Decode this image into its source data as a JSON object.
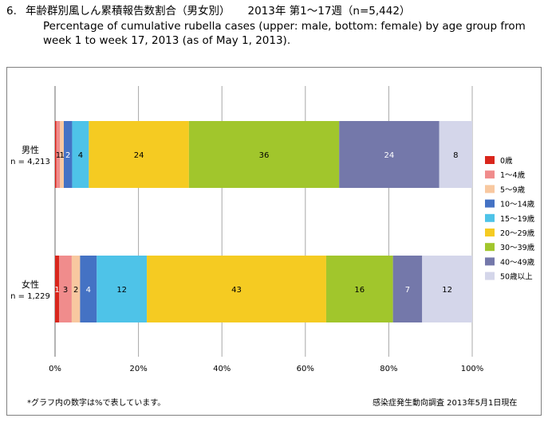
{
  "header": {
    "number": "6.",
    "title_ja": "年齢群別風しん累積報告数割合（男女別）",
    "range": "2013年 第1～17週（n=5,442）",
    "title_en_1": "Percentage of cumulative rubella cases (upper: male, bottom: female) by age group from",
    "title_en_2": "week 1 to week 17, 2013 (as of May 1, 2013)."
  },
  "footer": {
    "note": "*グラフ内の数字は%で表しています。",
    "source": "感染症発生動向調査 2013年5月1日現在"
  },
  "chart_data": {
    "type": "bar",
    "orientation": "horizontal",
    "stacked": true,
    "percent": true,
    "xlim": [
      0,
      100
    ],
    "xticks": [
      "0%",
      "20%",
      "40%",
      "60%",
      "80%",
      "100%"
    ],
    "categories": [
      {
        "label": "男性",
        "n": "n = 4,213"
      },
      {
        "label": "女性",
        "n": "n = 1,229"
      }
    ],
    "series": [
      {
        "name": "0歳",
        "color": "#d9261c",
        "values": [
          0.3,
          1.0
        ],
        "labels": [
          "",
          "1"
        ]
      },
      {
        "name": "1～4歳",
        "color": "#f08c8c",
        "values": [
          0.9,
          3.0
        ],
        "labels": [
          "1",
          "3"
        ]
      },
      {
        "name": "5～9歳",
        "color": "#f8c8a0",
        "values": [
          0.9,
          2.0
        ],
        "labels": [
          "1",
          "2"
        ]
      },
      {
        "name": "10～14歳",
        "color": "#4472c4",
        "values": [
          2.0,
          4.0
        ],
        "labels": [
          "2",
          "4"
        ]
      },
      {
        "name": "15～19歳",
        "color": "#4ec3e8",
        "values": [
          4.0,
          12.0
        ],
        "labels": [
          "4",
          "12"
        ]
      },
      {
        "name": "20～29歳",
        "color": "#f5cb22",
        "values": [
          24.0,
          43.0
        ],
        "labels": [
          "24",
          "43"
        ]
      },
      {
        "name": "30～39歳",
        "color": "#a1c62c",
        "values": [
          36.0,
          16.0
        ],
        "labels": [
          "36",
          "16"
        ]
      },
      {
        "name": "40～49歳",
        "color": "#7478aa",
        "values": [
          24.0,
          7.0
        ],
        "labels": [
          "24",
          "7"
        ]
      },
      {
        "name": "50歳以上",
        "color": "#d4d6ea",
        "values": [
          7.9,
          12.0
        ],
        "labels": [
          "8",
          "12"
        ]
      }
    ],
    "light_label_series": [
      "0歳",
      "10～14歳",
      "40～49歳"
    ]
  }
}
